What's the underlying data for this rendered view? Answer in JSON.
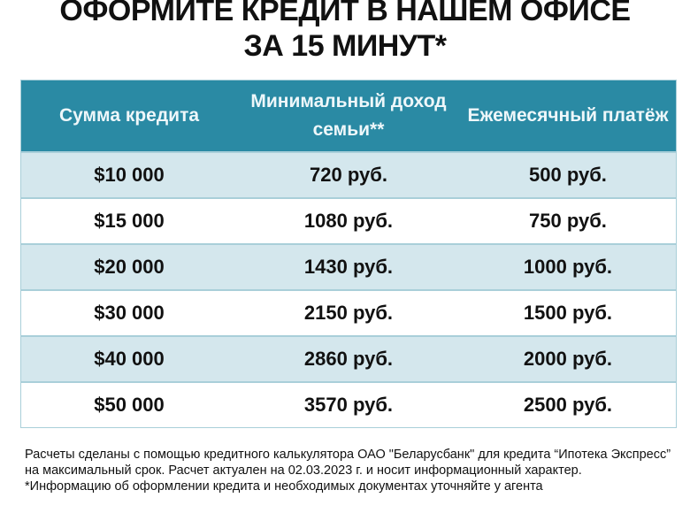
{
  "title": {
    "line1": "ОФОРМИТЕ КРЕДИТ В НАШЕМ ОФИСЕ",
    "line2": "ЗА 15 МИНУТ*"
  },
  "table": {
    "headers": [
      "Сумма кредита",
      "Минимальный доход семьи**",
      "Ежемесячный платёж"
    ],
    "rows": [
      [
        "$10 000",
        "720 руб.",
        "500 руб."
      ],
      [
        "$15 000",
        "1080 руб.",
        "750 руб."
      ],
      [
        "$20 000",
        "1430 руб.",
        "1000 руб."
      ],
      [
        "$30 000",
        "2150 руб.",
        "1500 руб."
      ],
      [
        "$40 000",
        "2860 руб.",
        "2000 руб."
      ],
      [
        "$50 000",
        "3570 руб.",
        "2500 руб."
      ]
    ],
    "header_color": "#2a8aa4",
    "stripe_color": "#d4e7ed"
  },
  "notes": {
    "calc": "Расчеты сделаны с помощью кредитного калькулятора ОАО \"Беларусбанк\" для кредита “Ипотека Экспресс” на максимальный срок. Расчет актуален на 02.03.2023 г. и носит информационный характер.",
    "agent": "*Информацию об оформлении кредита и необходимых документах уточняйте у агента"
  }
}
